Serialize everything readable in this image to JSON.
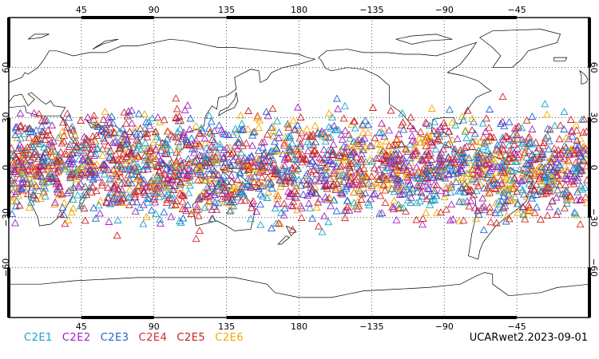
{
  "map": {
    "lon_ticks_top": [
      "45",
      "90",
      "135",
      "180",
      "−135",
      "−90",
      "−45"
    ],
    "lon_ticks_bottom": [
      "45",
      "90",
      "135",
      "180",
      "−135",
      "−90",
      "−45"
    ],
    "lat_ticks_left": [
      "60",
      "30",
      "0",
      "−30",
      "−60"
    ],
    "lat_ticks_right": [
      "60",
      "30",
      "0",
      "−30",
      "−60"
    ],
    "lon_range": [
      0,
      360
    ],
    "lat_range": [
      -90,
      90
    ],
    "grid": "dotted",
    "marker": "open-triangle",
    "observation_band_lat": [
      -45,
      45
    ]
  },
  "legend": [
    {
      "label": "C2E1",
      "color": "#17a2c8"
    },
    {
      "label": "C2E2",
      "color": "#a020c0"
    },
    {
      "label": "C2E3",
      "color": "#1e64d2"
    },
    {
      "label": "C2E4",
      "color": "#d42828"
    },
    {
      "label": "C2E5",
      "color": "#c81e1e"
    },
    {
      "label": "C2E6",
      "color": "#f0a800"
    }
  ],
  "dataset_label": "UCARwet2.2023-09-01"
}
